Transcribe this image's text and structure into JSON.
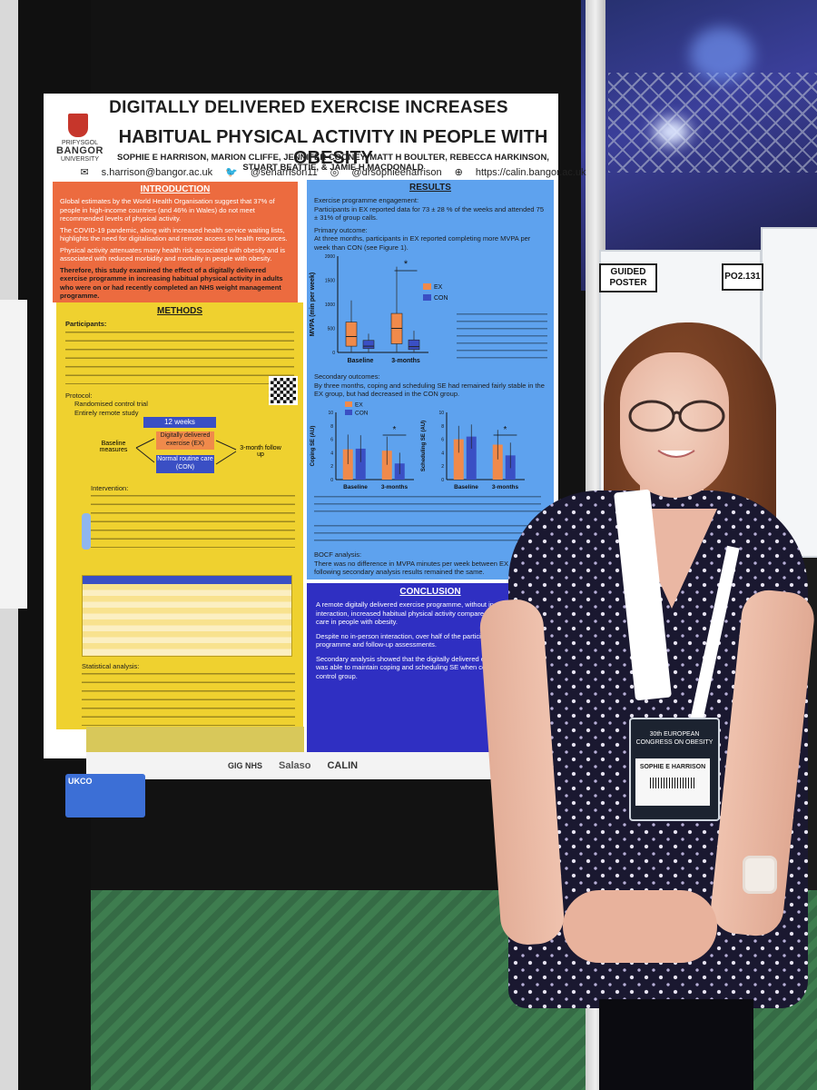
{
  "poster": {
    "title_line1": "DIGITALLY DELIVERED EXERCISE INCREASES",
    "title_line2": "HABITUAL PHYSICAL ACTIVITY IN PEOPLE WITH OBESITY",
    "authors": "SOPHIE E HARRISON, MARION CLIFFE, JENNIFER COONEY, MATT H BOULTER, REBECCA HARKINSON, STUART BEATTIE, & JAMIE H MACDONALD",
    "email": "s.harrison@bangor.ac.uk",
    "twitter": "@seharrison11",
    "instagram": "@drsophieeharrison",
    "website": "https://calin.bangor.ac.uk",
    "logo_prifysgol": "PRIFYSGOL",
    "logo_bangor": "BANGOR",
    "logo_university": "UNIVERSITY",
    "intro": {
      "heading": "INTRODUCTION",
      "bullet1": "Global estimates by the World Health Organisation suggest that 37% of people in high-income countries (and 46% in Wales) do not meet recommended levels of physical activity.",
      "bullet2": "The COVID-19 pandemic, along with increased health service waiting lists, highlights the need for digitalisation and remote access to health resources.",
      "bullet3": "Physical activity attenuates many health risk associated with obesity and is associated with reduced morbidity and mortality in people with obesity.",
      "aim": "Therefore, this study examined the effect of a digitally delivered exercise programme in increasing habitual physical activity in adults who were on or had recently completed an NHS weight management programme."
    },
    "methods": {
      "heading": "METHODS",
      "participants_label": "Participants:",
      "protocol_label": "Protocol:",
      "protocol1": "Randomised control trial",
      "protocol2": "Entirely remote study",
      "weeks": "12 weeks",
      "ex_box": "Digitally delivered exercise (EX)",
      "con_box": "Normal routine care (CON)",
      "baseline": "Baseline measures",
      "followup": "3-month follow up",
      "intervention_label": "Intervention:",
      "stat_label": "Statistical analysis:"
    },
    "results": {
      "heading": "RESULTS",
      "engagement_label": "Exercise programme engagement:",
      "engagement": "Participants in EX reported data for 73 ± 28 % of the weeks and attended 75 ± 31% of group calls.",
      "primary_label": "Primary outcome:",
      "primary": "At three months, participants in EX reported completing more MVPA per week than CON (see Figure 1).",
      "secondary_label": "Secondary outcomes:",
      "secondary": "By three months, coping and scheduling SE had remained fairly stable in the EX group, but had decreased in the CON group.",
      "fig1_ylabel": "MVPA (min per week)",
      "legend_ex": "EX",
      "legend_con": "CON",
      "x_baseline": "Baseline",
      "x_3m": "3-months",
      "x_3m_b": "3-month",
      "coping_ylabel": "Coping SE (AU)",
      "sched_ylabel": "Scheduling SE (AU)",
      "bocf_label": "BOCF analysis:",
      "bocf": "There was no difference in MVPA minutes per week between EX and CON following secondary analysis results remained the same."
    },
    "conclusion": {
      "heading": "CONCLUSION",
      "text1": "A remote digitally delivered exercise programme, without in-person interaction, increased habitual physical activity compared to normal routine care in people with obesity.",
      "text2": "Despite no in-person interaction, over half of the participants completed the programme and follow-up assessments.",
      "text3": "Secondary analysis showed that the digitally delivered exercise intervention was able to maintain coping and scheduling SE when compared to the control group."
    },
    "footer": {
      "salaso": "Salaso",
      "calin": "CALIN",
      "gig": "GIG NHS"
    }
  },
  "booth_labels": {
    "left": "GUIDED POSTER",
    "right": "PO2.131"
  },
  "badge": {
    "congress": "30th EUROPEAN CONGRESS ON OBESITY",
    "name": "SOPHIE E HARRISON"
  },
  "card": {
    "label": "UKCO"
  },
  "chart_data": [
    {
      "type": "box",
      "ylabel": "MVPA (min per week)",
      "categories": [
        "Baseline",
        "3-months"
      ],
      "ylim": [
        0,
        2000
      ],
      "yticks": [
        0,
        500,
        1000,
        1500,
        2000
      ],
      "series": [
        {
          "name": "EX",
          "color": "#f08a4b",
          "median": [
            330,
            500
          ],
          "q1": [
            130,
            180
          ],
          "q3": [
            630,
            810
          ],
          "min": [
            0,
            0
          ],
          "max": [
            1080,
            1780
          ]
        },
        {
          "name": "CON",
          "color": "#3a4fc4",
          "median": [
            130,
            120
          ],
          "q1": [
            80,
            60
          ],
          "q3": [
            250,
            260
          ],
          "min": [
            0,
            0
          ],
          "max": [
            390,
            450
          ]
        }
      ],
      "annotation": "*"
    },
    {
      "type": "bar",
      "ylabel": "Coping SE (AU)",
      "categories": [
        "Baseline",
        "3-months"
      ],
      "ylim": [
        0,
        10
      ],
      "yticks": [
        0,
        2,
        4,
        6,
        8,
        10
      ],
      "series": [
        {
          "name": "EX",
          "color": "#f08a4b",
          "values": [
            4.5,
            4.3
          ],
          "err": [
            2.2,
            2.1
          ]
        },
        {
          "name": "CON",
          "color": "#3a4fc4",
          "values": [
            4.6,
            2.4
          ],
          "err": [
            2.0,
            1.6
          ]
        }
      ],
      "annotation": "*"
    },
    {
      "type": "bar",
      "ylabel": "Scheduling SE (AU)",
      "categories": [
        "Baseline",
        "3-months"
      ],
      "ylim": [
        0,
        10
      ],
      "yticks": [
        0,
        2,
        4,
        6,
        8,
        10
      ],
      "series": [
        {
          "name": "EX",
          "color": "#f08a4b",
          "values": [
            6.0,
            5.2
          ],
          "err": [
            2.0,
            2.2
          ]
        },
        {
          "name": "CON",
          "color": "#3a4fc4",
          "values": [
            6.4,
            3.6
          ],
          "err": [
            1.8,
            1.9
          ]
        }
      ],
      "annotation": "*"
    }
  ]
}
